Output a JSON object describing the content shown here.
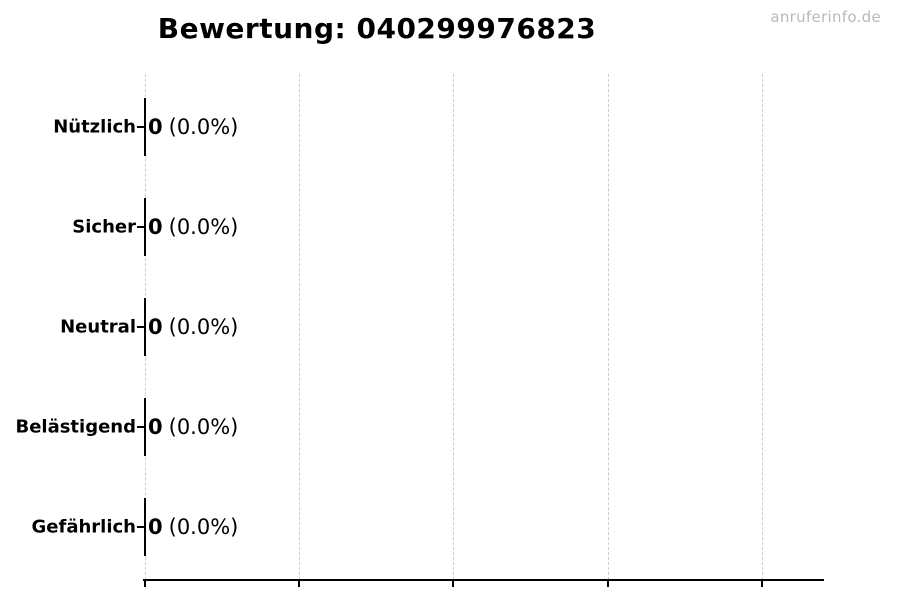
{
  "title": "Bewertung: 040299976823",
  "watermark": {
    "text": "anruferinfo.de",
    "color": "#b9b9b9"
  },
  "rows": [
    {
      "label": "Nützlich",
      "count": "0",
      "percent": "(0.0%)"
    },
    {
      "label": "Sicher",
      "count": "0",
      "percent": "(0.0%)"
    },
    {
      "label": "Neutral",
      "count": "0",
      "percent": "(0.0%)"
    },
    {
      "label": "Belästigend",
      "count": "0",
      "percent": "(0.0%)"
    },
    {
      "label": "Gefährlich",
      "count": "0",
      "percent": "(0.0%)"
    }
  ],
  "chart_data": {
    "type": "bar",
    "orientation": "horizontal",
    "title": "Bewertung: 040299976823",
    "categories": [
      "Nützlich",
      "Sicher",
      "Neutral",
      "Belästigend",
      "Gefährlich"
    ],
    "values": [
      0,
      0,
      0,
      0,
      0
    ],
    "percentages": [
      0.0,
      0.0,
      0.0,
      0.0,
      0.0
    ],
    "bar_labels": [
      "0 (0.0%)",
      "0 (0.0%)",
      "0 (0.0%)",
      "0 (0.0%)",
      "0 (0.0%)"
    ],
    "xlabel": "",
    "ylabel": "",
    "x_tick_labels": [],
    "x_tick_count": 5,
    "grid": true,
    "gridline_style": "dashed",
    "gridline_color": "#cccccc",
    "bar_edge_color": "#000000",
    "legend": null,
    "watermark": "anruferinfo.de"
  }
}
